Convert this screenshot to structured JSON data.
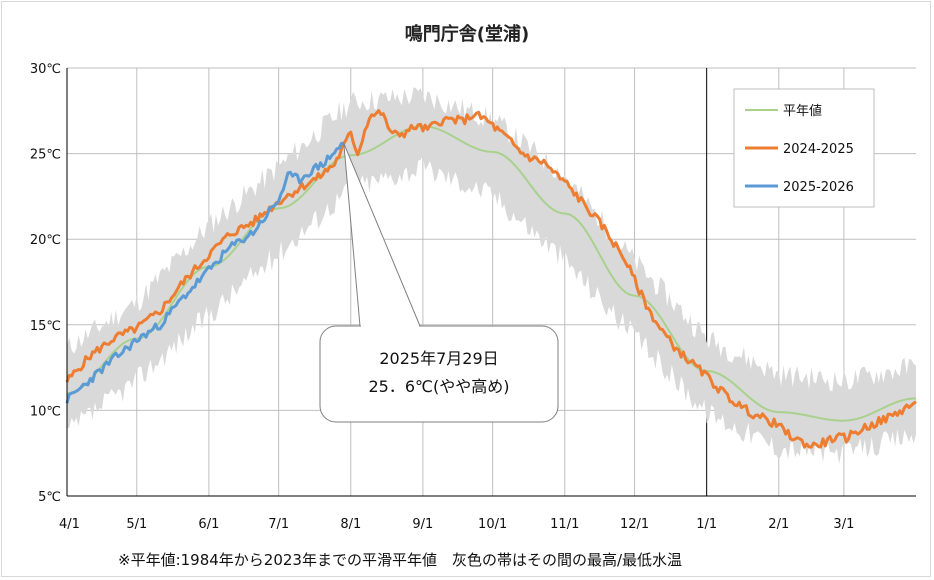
{
  "chart_data": {
    "type": "line",
    "title": "鳴門庁舎(堂浦)",
    "footnote": "※平年値:1984年から2023年までの平滑平年値　灰色の帯はその間の最高/最低水温",
    "y_ticks": [
      "5℃",
      "10℃",
      "15℃",
      "20℃",
      "25℃",
      "30℃"
    ],
    "ylim": [
      5,
      30
    ],
    "x_ticks": [
      "4/1",
      "5/1",
      "6/1",
      "7/1",
      "8/1",
      "9/1",
      "10/1",
      "11/1",
      "12/1",
      "1/1",
      "2/1",
      "3/1"
    ],
    "x_range_days": [
      0,
      365
    ],
    "grid": true,
    "legend_position": "top-right",
    "colors": {
      "normal": "#a9d18e",
      "y2024": "#ed7d31",
      "y2025": "#5b9bd5",
      "band": "#d9d9d9",
      "grid": "#bfbfbf",
      "year_divider": "#000000"
    },
    "series": [
      {
        "name": "平年値",
        "x": [
          0,
          30,
          61,
          91,
          122,
          153,
          183,
          214,
          244,
          275,
          306,
          334,
          365
        ],
        "y": [
          11.0,
          14.2,
          18.4,
          21.8,
          24.9,
          26.6,
          25.1,
          21.5,
          16.7,
          12.3,
          9.9,
          9.4,
          10.7
        ]
      },
      {
        "name": "2024-2025",
        "x": [
          0,
          10,
          20,
          30,
          40,
          50,
          61,
          70,
          80,
          91,
          100,
          108,
          115,
          122,
          125,
          130,
          135,
          140,
          145,
          150,
          155,
          160,
          165,
          170,
          175,
          180,
          185,
          190,
          195,
          200,
          205,
          210,
          215,
          220,
          225,
          230,
          235,
          240,
          245,
          250,
          255,
          260,
          265,
          270,
          275,
          280,
          285,
          290,
          295,
          300,
          305,
          310,
          315,
          320,
          325,
          330,
          335,
          340,
          345,
          350,
          355,
          360,
          365
        ],
        "y": [
          11.7,
          13.2,
          14.2,
          14.8,
          15.8,
          17.5,
          19.1,
          20.3,
          21.0,
          22.2,
          23.0,
          23.6,
          24.4,
          26.2,
          25.0,
          27.2,
          27.4,
          26.1,
          26.2,
          26.6,
          26.4,
          26.9,
          27.0,
          26.9,
          27.3,
          27.0,
          26.4,
          25.8,
          25.1,
          24.7,
          24.5,
          23.8,
          23.2,
          22.4,
          21.6,
          20.8,
          19.8,
          18.8,
          17.3,
          15.9,
          14.8,
          13.9,
          13.2,
          12.6,
          12.0,
          11.3,
          10.7,
          10.2,
          9.8,
          9.5,
          9.2,
          8.6,
          8.2,
          7.9,
          8.1,
          8.4,
          8.4,
          8.8,
          9.1,
          9.4,
          9.7,
          10.1,
          10.5
        ]
      },
      {
        "name": "2025-2026",
        "x": [
          0,
          10,
          20,
          30,
          40,
          50,
          61,
          70,
          80,
          91,
          95,
          100,
          105,
          110,
          115,
          119
        ],
        "y": [
          10.6,
          11.8,
          13.0,
          14.1,
          15.0,
          16.6,
          18.2,
          19.5,
          20.4,
          22.3,
          23.7,
          23.5,
          24.0,
          24.4,
          25.1,
          25.6
        ]
      }
    ],
    "band": {
      "name": "最高/最低水温",
      "x": [
        0,
        30,
        61,
        91,
        122,
        153,
        183,
        214,
        244,
        275,
        306,
        334,
        365
      ],
      "upper": [
        13.6,
        16.3,
        20.8,
        24.2,
        28.0,
        28.4,
        27.0,
        23.7,
        18.7,
        14.2,
        12.1,
        11.7,
        12.6
      ],
      "lower": [
        8.7,
        11.8,
        15.6,
        19.2,
        23.0,
        24.2,
        22.6,
        18.8,
        14.3,
        9.9,
        7.8,
        7.5,
        8.6
      ]
    },
    "annotation": {
      "line1": "2025年7月29日",
      "line2": "25．6℃(やや高め)",
      "point": {
        "x": 119,
        "y": 25.6
      }
    }
  }
}
